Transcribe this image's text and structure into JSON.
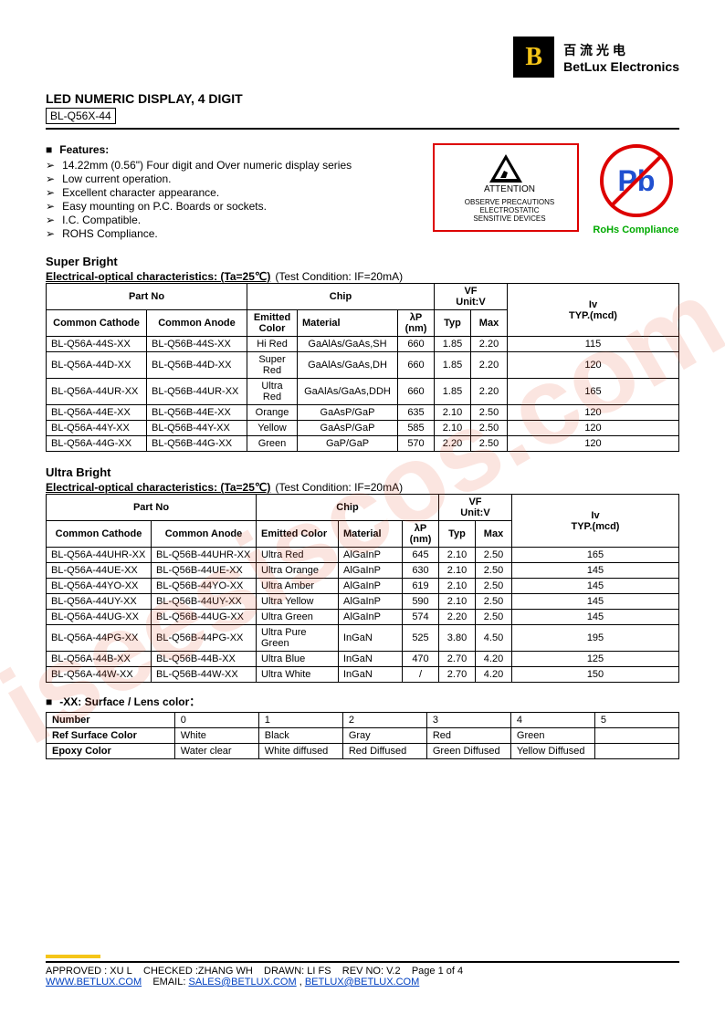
{
  "company": {
    "cn": "百 流 光 电",
    "en": "BetLux Electronics",
    "logo": "B"
  },
  "title": "LED NUMERIC DISPLAY, 4 DIGIT",
  "partno": "BL-Q56X-44",
  "features": {
    "title": "Features:",
    "items": [
      "14.22mm (0.56\") Four digit and Over numeric display series",
      "Low current operation.",
      "Excellent character appearance.",
      "Easy mounting on P.C. Boards or sockets.",
      "I.C. Compatible.",
      "ROHS Compliance."
    ]
  },
  "esd": {
    "title": "ATTENTION",
    "line1": "OBSERVE PRECAUTIONS",
    "line2": "ELECTROSTATIC",
    "line3": "SENSITIVE DEVICES"
  },
  "rohs": {
    "pb": "Pb",
    "label": "RoHs Compliance"
  },
  "super": {
    "title": "Super Bright",
    "subtitle": "Electrical-optical characteristics: (Ta=25℃)",
    "cond": "(Test Condition: IF=20mA)",
    "headers": {
      "partno": "Part No",
      "chip": "Chip",
      "vf": "VF",
      "vfunit": "Unit:V",
      "iv": "Iv",
      "ivunit": "TYP.(mcd)",
      "cc": "Common Cathode",
      "ca": "Common Anode",
      "color": "Emitted Color",
      "mat": "Material",
      "lp": "λP",
      "nm": "(nm)",
      "typ": "Typ",
      "max": "Max"
    },
    "rows": [
      {
        "cc": "BL-Q56A-44S-XX",
        "ca": "BL-Q56B-44S-XX",
        "color": "Hi Red",
        "mat": "GaAlAs/GaAs,SH",
        "lp": "660",
        "typ": "1.85",
        "max": "2.20",
        "iv": "115"
      },
      {
        "cc": "BL-Q56A-44D-XX",
        "ca": "BL-Q56B-44D-XX",
        "color": "Super Red",
        "mat": "GaAlAs/GaAs,DH",
        "lp": "660",
        "typ": "1.85",
        "max": "2.20",
        "iv": "120"
      },
      {
        "cc": "BL-Q56A-44UR-XX",
        "ca": "BL-Q56B-44UR-XX",
        "color": "Ultra Red",
        "mat": "GaAlAs/GaAs,DDH",
        "lp": "660",
        "typ": "1.85",
        "max": "2.20",
        "iv": "165"
      },
      {
        "cc": "BL-Q56A-44E-XX",
        "ca": "BL-Q56B-44E-XX",
        "color": "Orange",
        "mat": "GaAsP/GaP",
        "lp": "635",
        "typ": "2.10",
        "max": "2.50",
        "iv": "120"
      },
      {
        "cc": "BL-Q56A-44Y-XX",
        "ca": "BL-Q56B-44Y-XX",
        "color": "Yellow",
        "mat": "GaAsP/GaP",
        "lp": "585",
        "typ": "2.10",
        "max": "2.50",
        "iv": "120"
      },
      {
        "cc": "BL-Q56A-44G-XX",
        "ca": "BL-Q56B-44G-XX",
        "color": "Green",
        "mat": "GaP/GaP",
        "lp": "570",
        "typ": "2.20",
        "max": "2.50",
        "iv": "120"
      }
    ]
  },
  "ultra": {
    "title": "Ultra Bright",
    "subtitle": "Electrical-optical characteristics: (Ta=25℃)",
    "cond": "(Test Condition: IF=20mA)",
    "rows": [
      {
        "cc": "BL-Q56A-44UHR-XX",
        "ca": "BL-Q56B-44UHR-XX",
        "color": "Ultra Red",
        "mat": "AlGaInP",
        "lp": "645",
        "typ": "2.10",
        "max": "2.50",
        "iv": "165"
      },
      {
        "cc": "BL-Q56A-44UE-XX",
        "ca": "BL-Q56B-44UE-XX",
        "color": "Ultra Orange",
        "mat": "AlGaInP",
        "lp": "630",
        "typ": "2.10",
        "max": "2.50",
        "iv": "145"
      },
      {
        "cc": "BL-Q56A-44YO-XX",
        "ca": "BL-Q56B-44YO-XX",
        "color": "Ultra Amber",
        "mat": "AlGaInP",
        "lp": "619",
        "typ": "2.10",
        "max": "2.50",
        "iv": "145"
      },
      {
        "cc": "BL-Q56A-44UY-XX",
        "ca": "BL-Q56B-44UY-XX",
        "color": "Ultra Yellow",
        "mat": "AlGaInP",
        "lp": "590",
        "typ": "2.10",
        "max": "2.50",
        "iv": "145"
      },
      {
        "cc": "BL-Q56A-44UG-XX",
        "ca": "BL-Q56B-44UG-XX",
        "color": "Ultra Green",
        "mat": "AlGaInP",
        "lp": "574",
        "typ": "2.20",
        "max": "2.50",
        "iv": "145"
      },
      {
        "cc": "BL-Q56A-44PG-XX",
        "ca": "BL-Q56B-44PG-XX",
        "color": "Ultra Pure Green",
        "mat": "InGaN",
        "lp": "525",
        "typ": "3.80",
        "max": "4.50",
        "iv": "195"
      },
      {
        "cc": "BL-Q56A-44B-XX",
        "ca": "BL-Q56B-44B-XX",
        "color": "Ultra Blue",
        "mat": "InGaN",
        "lp": "470",
        "typ": "2.70",
        "max": "4.20",
        "iv": "125"
      },
      {
        "cc": "BL-Q56A-44W-XX",
        "ca": "BL-Q56B-44W-XX",
        "color": "Ultra White",
        "mat": "InGaN",
        "lp": "/",
        "typ": "2.70",
        "max": "4.20",
        "iv": "150"
      }
    ]
  },
  "lens": {
    "title": "-XX: Surface / Lens color：",
    "number": "Number",
    "ref": "Ref Surface Color",
    "epoxy": "Epoxy Color",
    "cols": [
      "0",
      "1",
      "2",
      "3",
      "4",
      "5"
    ],
    "surface": [
      "White",
      "Black",
      "Gray",
      "Red",
      "Green",
      ""
    ],
    "epoxycolor": [
      "Water clear",
      "White diffused",
      "Red Diffused",
      "Green Diffused",
      "Yellow Diffused",
      ""
    ]
  },
  "footer": {
    "approved": "APPROVED : XU L",
    "checked": "CHECKED  :ZHANG WH",
    "drawn": "DRAWN:  LI  FS",
    "rev": "REV  NO:  V.2",
    "page": "Page 1 of 4",
    "url": "WWW.BETLUX.COM",
    "email_label": "EMAIL:",
    "email1": "SALES@BETLUX.COM",
    "email2": "BETLUX@BETLUX.COM"
  },
  "watermark": "iseesiscos.com"
}
